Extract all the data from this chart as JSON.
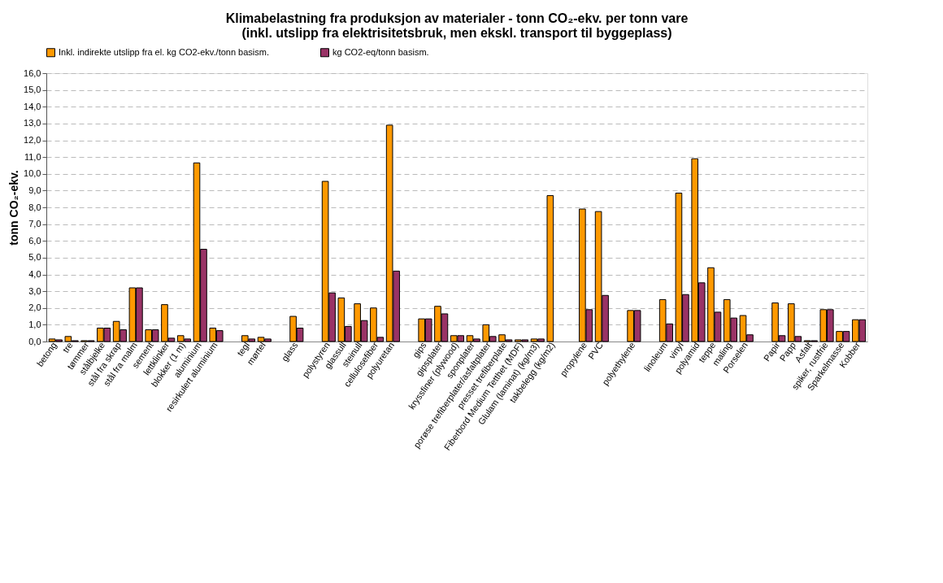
{
  "chart_data": {
    "type": "bar",
    "title": "Klimabelastning fra produksjon av materialer - tonn CO₂-ekv. per tonn vare\n(inkl. utslipp fra elektrisitetsbruk, men ekskl. transport til byggeplass)",
    "ylabel": "tonn CO₂-ekv.",
    "categories": [
      "betong",
      "tre",
      "tømmer",
      "stålbjelke",
      "stål fra skrap",
      "stål fra malm",
      "sement",
      "lettklinker",
      "blokker (1 m)",
      "aluminium",
      "resirkulert aluminium",
      null,
      "tegl",
      "mørtel",
      null,
      "glass",
      null,
      "polystyren",
      "glassull",
      "steinull",
      "cellulosefiber",
      "polyuretan",
      null,
      "gips",
      "gipsplater",
      "kryssfiner (plywood)",
      "sponplater",
      "porøse trefiberplater/asfaltplater",
      "presset trefiberplate",
      "Fiberbord Medium Tetthet (MDF)",
      "Glulam (laminat) (kg/m3)",
      "takbelegg (kg/m2)",
      null,
      "propylene",
      "PVC",
      null,
      "polyethylene",
      null,
      "linoleum",
      "vinyl",
      "polyamid",
      "teppe",
      "maling",
      "Porselen",
      null,
      "Papir",
      "Papp",
      "Asfalt",
      "spiker, rustfrie",
      "Sparkelmasse",
      "Kobber"
    ],
    "series": [
      {
        "name": "Inkl. indirekte utslipp fra el. kg CO2-ekv./tonn basism.",
        "color": "#ff9900",
        "values": [
          0.15,
          0.3,
          0.05,
          0.8,
          1.2,
          3.2,
          0.7,
          2.2,
          0.35,
          10.65,
          0.8,
          null,
          0.35,
          0.25,
          null,
          1.5,
          null,
          9.55,
          2.6,
          2.25,
          2.0,
          12.9,
          null,
          1.35,
          2.1,
          0.35,
          0.35,
          1.0,
          0.4,
          0.1,
          0.15,
          8.7,
          null,
          7.9,
          7.75,
          null,
          1.85,
          null,
          2.5,
          8.85,
          10.9,
          4.4,
          2.5,
          1.55,
          null,
          2.3,
          2.25,
          0.05,
          1.9,
          0.6,
          1.3
        ]
      },
      {
        "name": "kg CO2-eq/tonn basism.",
        "color": "#993366",
        "values": [
          0.1,
          0.05,
          0.05,
          0.8,
          0.7,
          3.2,
          0.7,
          0.2,
          0.15,
          5.5,
          0.65,
          null,
          0.15,
          0.15,
          null,
          0.8,
          null,
          2.9,
          0.9,
          1.25,
          0.25,
          4.2,
          null,
          1.35,
          1.65,
          0.35,
          0.15,
          0.3,
          0.1,
          0.1,
          0.15,
          null,
          null,
          1.9,
          2.75,
          null,
          1.85,
          null,
          1.05,
          2.8,
          3.5,
          1.75,
          1.4,
          0.4,
          null,
          0.35,
          0.3,
          0.05,
          1.9,
          0.6,
          1.3
        ]
      }
    ],
    "ylim": [
      0,
      16
    ],
    "yticks": [
      {
        "value": 0,
        "label": "0,0"
      },
      {
        "value": 1,
        "label": "1,0"
      },
      {
        "value": 2,
        "label": "2,0"
      },
      {
        "value": 3,
        "label": "3,0"
      },
      {
        "value": 4,
        "label": "4,0"
      },
      {
        "value": 5,
        "label": "5,0"
      },
      {
        "value": 6,
        "label": "6,0"
      },
      {
        "value": 7,
        "label": "7,0"
      },
      {
        "value": 8,
        "label": "8,0"
      },
      {
        "value": 9,
        "label": "9,0"
      },
      {
        "value": 10,
        "label": "10,0"
      },
      {
        "value": 11,
        "label": "11,0"
      },
      {
        "value": 12,
        "label": "12,0"
      },
      {
        "value": 13,
        "label": "13,0"
      },
      {
        "value": 14,
        "label": "14,0"
      },
      {
        "value": 15,
        "label": "15,0"
      },
      {
        "value": 16,
        "label": "16,0"
      }
    ],
    "grid": "y",
    "legend": "top"
  }
}
